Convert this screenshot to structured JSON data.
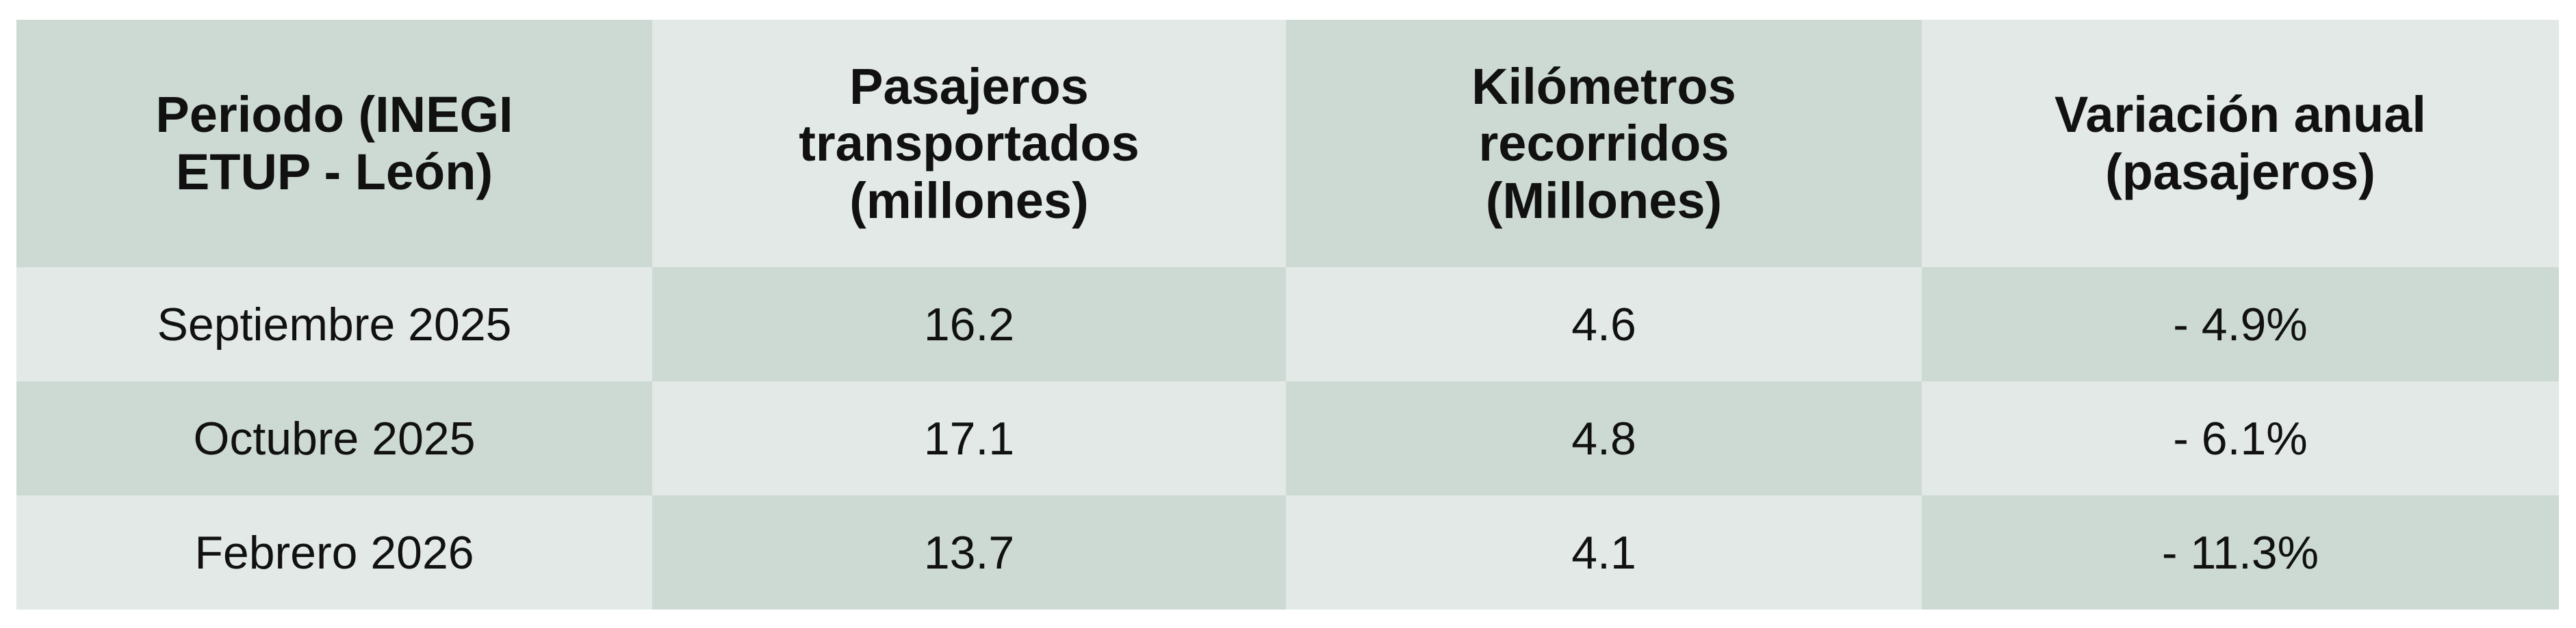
{
  "table": {
    "header": [
      [
        "Periodo (INEGI",
        "ETUP - León)"
      ],
      [
        "Pasajeros",
        "transportados",
        "(millones)"
      ],
      [
        "Kilómetros",
        "recorridos",
        "(Millones)"
      ],
      [
        "Variación anual",
        "(pasajeros)"
      ]
    ],
    "rows": [
      [
        "Septiembre 2025",
        16.2,
        4.6,
        "- 4.9%"
      ],
      [
        "Octubre 2025",
        17.1,
        4.8,
        "- 6.1%"
      ],
      [
        "Febrero 2026",
        13.7,
        4.1,
        "- 11.3%"
      ]
    ]
  }
}
